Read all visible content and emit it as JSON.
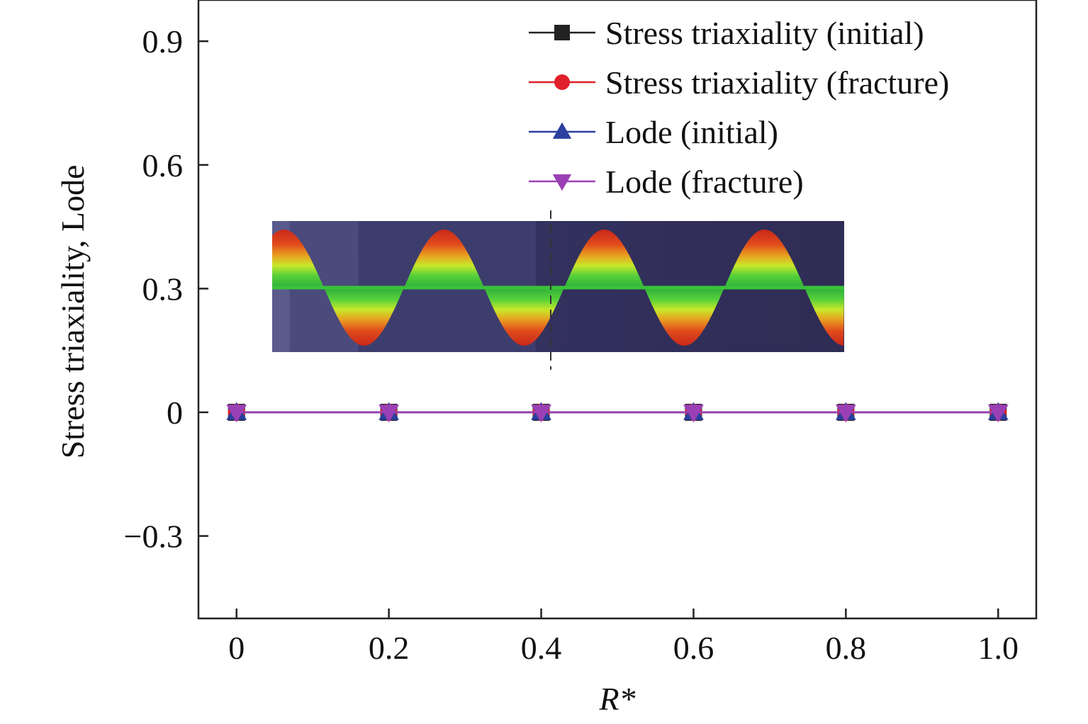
{
  "chart_data": {
    "type": "line",
    "x": [
      0,
      0.2,
      0.4,
      0.6,
      0.8,
      1.0
    ],
    "x_tick_labels": [
      "0",
      "0.2",
      "0.4",
      "0.6",
      "0.8",
      "1.0"
    ],
    "y_tick_values": [
      -0.3,
      0,
      0.3,
      0.6,
      0.9
    ],
    "y_tick_labels": [
      "−0.3",
      "0",
      "0.3",
      "0.6",
      "0.9"
    ],
    "xlim": [
      -0.05,
      1.05
    ],
    "ylim": [
      -0.5,
      1.0
    ],
    "xlabel": "R*",
    "ylabel": "Stress triaxiality, Lode",
    "grid": false,
    "legend_position": "top-right",
    "series": [
      {
        "name": "Stress triaxiality (initial)",
        "marker": "square",
        "color": "#222222",
        "values": [
          0,
          0,
          0,
          0,
          0,
          0
        ]
      },
      {
        "name": "Stress triaxiality (fracture)",
        "marker": "circle",
        "color": "#e0202a",
        "values": [
          0,
          0,
          0,
          0,
          0,
          0
        ]
      },
      {
        "name": "Lode (initial)",
        "marker": "triangle-up",
        "color": "#2a3f9e",
        "values": [
          0,
          0,
          0,
          0,
          0,
          0
        ]
      },
      {
        "name": "Lode (fracture)",
        "marker": "triangle-down",
        "color": "#9b3fb5",
        "values": [
          0,
          0,
          0,
          0,
          0,
          0
        ]
      }
    ],
    "inset": {
      "type": "contour-image",
      "colors": [
        "#2f2c55",
        "#3a3a6a",
        "#5a5a8c",
        "#3bbf3b",
        "#b8e82a",
        "#e8a020",
        "#d42a1a"
      ]
    }
  }
}
